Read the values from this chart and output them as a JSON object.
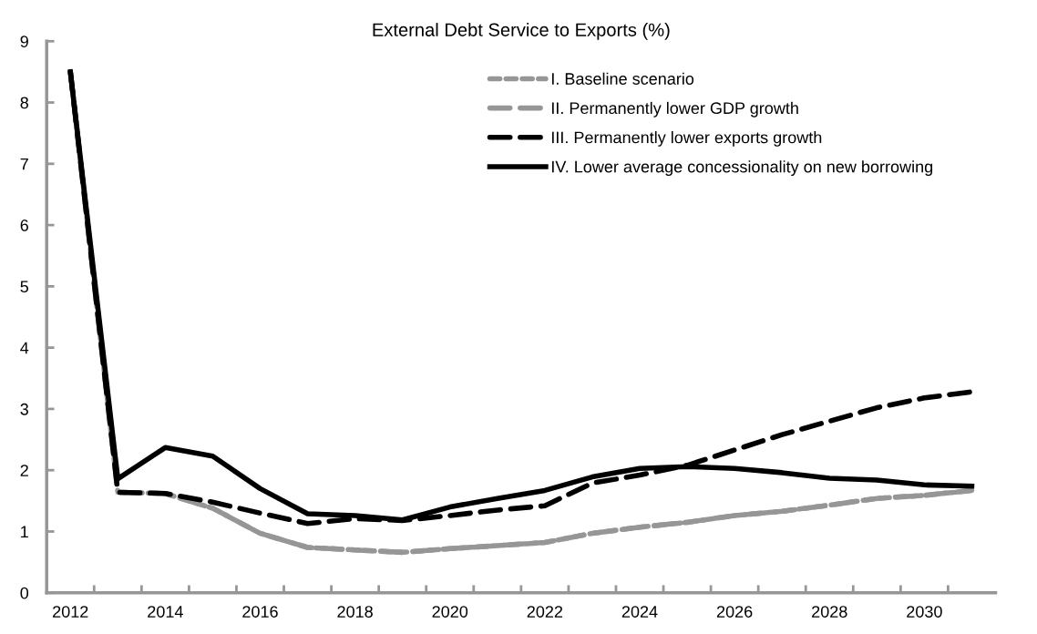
{
  "chart_data": {
    "type": "line",
    "title": "External Debt Service to Exports (%)",
    "categories": [
      "2012",
      null,
      "2014",
      null,
      "2016",
      null,
      "2018",
      null,
      "2020",
      null,
      "2022",
      null,
      "2024",
      null,
      "2026",
      null,
      "2028",
      null,
      "2030",
      null
    ],
    "series": [
      {
        "name": "I. Baseline scenario",
        "color": "#969696",
        "line_style": "dotted",
        "values": [
          8.5,
          1.64,
          1.62,
          1.38,
          0.97,
          0.74,
          0.7,
          0.66,
          0.72,
          0.77,
          0.82,
          0.97,
          1.07,
          1.15,
          1.26,
          1.33,
          1.43,
          1.54,
          1.59,
          1.67
        ]
      },
      {
        "name": "II. Permanently lower GDP growth",
        "color": "#969696",
        "line_style": "dashed",
        "values": [
          8.5,
          1.64,
          1.62,
          1.38,
          0.97,
          0.74,
          0.7,
          0.66,
          0.72,
          0.77,
          0.82,
          0.97,
          1.07,
          1.15,
          1.26,
          1.33,
          1.43,
          1.54,
          1.59,
          1.67
        ]
      },
      {
        "name": "III. Permanently lower exports growth",
        "color": "#000000",
        "line_style": "dashed",
        "values": [
          8.5,
          1.64,
          1.62,
          1.48,
          1.3,
          1.13,
          1.21,
          1.18,
          1.26,
          1.35,
          1.42,
          1.79,
          1.92,
          2.08,
          2.33,
          2.58,
          2.8,
          3.02,
          3.18,
          3.28
        ]
      },
      {
        "name": "IV. Lower average concessionality on new borrowing",
        "color": "#000000",
        "line_style": "solid",
        "values": [
          8.5,
          1.86,
          2.37,
          2.23,
          1.7,
          1.29,
          1.26,
          1.19,
          1.4,
          1.54,
          1.67,
          1.89,
          2.03,
          2.06,
          2.03,
          1.96,
          1.87,
          1.84,
          1.76,
          1.74
        ]
      }
    ],
    "ylim": [
      0,
      9
    ],
    "yticks": [
      0,
      1,
      2,
      3,
      4,
      5,
      6,
      7,
      8,
      9
    ],
    "grid": false,
    "legend": "top right",
    "marker": "none"
  }
}
